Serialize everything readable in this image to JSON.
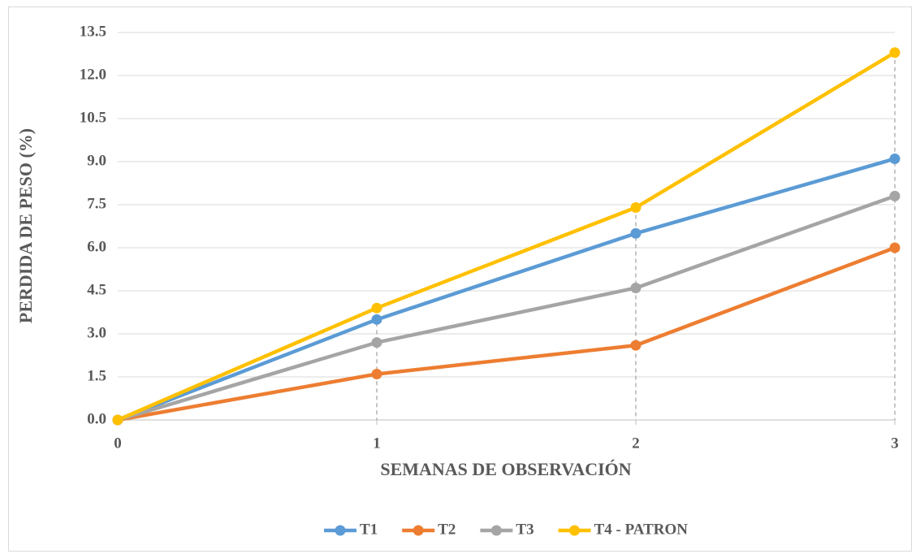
{
  "chart_data": {
    "type": "line",
    "x_label": "SEMANAS DE OBSERVACIÓN",
    "y_label": "PERDIDA DE PESO (%)",
    "x": [
      0,
      1,
      2,
      3
    ],
    "xlim": [
      0,
      3
    ],
    "xticks": [
      0,
      1,
      2,
      3
    ],
    "ylim": [
      0,
      13.5
    ],
    "yticks": [
      {
        "value": 0,
        "label": "0.0"
      },
      1.5,
      {
        "value": 3,
        "label": "3.0"
      },
      4.5,
      {
        "value": 6,
        "label": "6.0"
      },
      7.5,
      {
        "value": 9,
        "label": "9.0"
      },
      10.5,
      {
        "value": 12,
        "label": "12.0"
      },
      13.5
    ],
    "grid": true,
    "drop_lines": true,
    "legend": "bottom",
    "series": [
      {
        "name": "T1",
        "color": "#5b9bd5",
        "values": [
          0,
          3.5,
          6.5,
          9.1
        ]
      },
      {
        "name": "T2",
        "color": "#ed7d31",
        "values": [
          0,
          1.6,
          2.6,
          6.0
        ]
      },
      {
        "name": "T3",
        "color": "#a5a5a5",
        "values": [
          0,
          2.7,
          4.6,
          7.8
        ]
      },
      {
        "name": "T4 - PATRON",
        "color": "#ffc000",
        "values": [
          0,
          3.9,
          7.4,
          12.8
        ]
      }
    ]
  }
}
